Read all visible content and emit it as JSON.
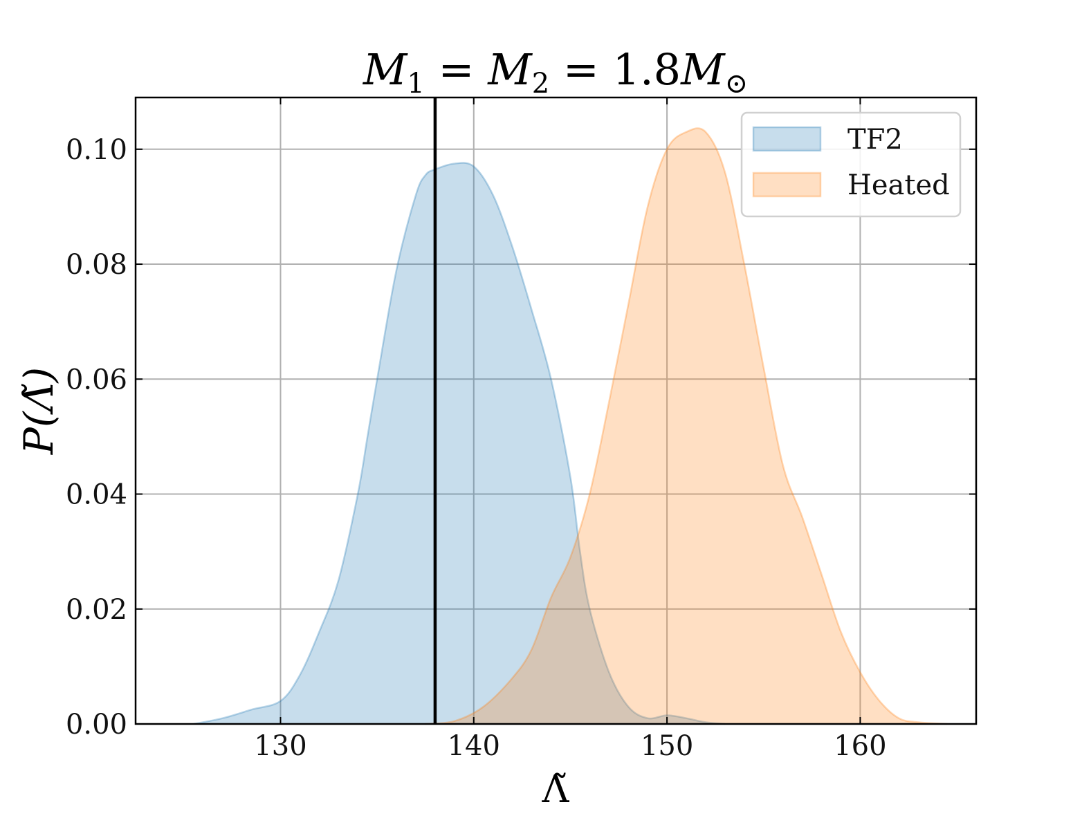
{
  "chart_data": {
    "type": "area",
    "title": {
      "parts": [
        {
          "text": "M",
          "italic": true
        },
        {
          "text": "1",
          "sub": true
        },
        {
          "text": " = ",
          "italic": false
        },
        {
          "text": "M",
          "italic": true
        },
        {
          "text": "2",
          "sub": true
        },
        {
          "text": " = 1.8",
          "italic": false
        },
        {
          "text": "M",
          "italic": true
        },
        {
          "text": "⊙",
          "sub": true
        }
      ]
    },
    "xlabel": "Λ̃",
    "ylabel": "P(Λ̃)",
    "xlim": [
      122.5,
      166
    ],
    "ylim": [
      0,
      0.109
    ],
    "xticks": [
      130,
      140,
      150,
      160
    ],
    "xtick_labels": [
      "130",
      "140",
      "150",
      "160"
    ],
    "yticks": [
      0.0,
      0.02,
      0.04,
      0.06,
      0.08,
      0.1
    ],
    "ytick_labels": [
      "0.00",
      "0.02",
      "0.04",
      "0.06",
      "0.08",
      "0.10"
    ],
    "grid": true,
    "legend_position": "top-right",
    "vline": {
      "x": 138,
      "color": "#000000"
    },
    "series": [
      {
        "name": "TF2",
        "color": "#1f77b4",
        "fill_color": "#c6dbea",
        "x": [
          125.5,
          127.0,
          128.5,
          130.0,
          131.0,
          132.0,
          133.0,
          134.0,
          134.5,
          135.0,
          136.0,
          137.0,
          137.5,
          138.0,
          139.0,
          140.0,
          141.0,
          142.0,
          143.0,
          144.0,
          145.0,
          145.5,
          146.0,
          147.0,
          148.0,
          149.0,
          150.0,
          151.0,
          152.0,
          153.0
        ],
        "values": [
          0.0,
          0.001,
          0.0025,
          0.004,
          0.0085,
          0.016,
          0.025,
          0.04,
          0.05,
          0.06,
          0.079,
          0.092,
          0.0955,
          0.0965,
          0.0975,
          0.097,
          0.092,
          0.083,
          0.072,
          0.06,
          0.043,
          0.03,
          0.02,
          0.009,
          0.003,
          0.001,
          0.0015,
          0.001,
          0.0003,
          0.0
        ]
      },
      {
        "name": "Heated",
        "color": "#ff7f0e",
        "fill_color": "#fdd8b5",
        "x": [
          137.5,
          139.0,
          140.5,
          142.0,
          143.0,
          144.0,
          145.0,
          146.0,
          147.0,
          148.0,
          149.0,
          150.0,
          151.0,
          152.0,
          153.0,
          154.0,
          155.0,
          156.0,
          157.0,
          158.0,
          159.0,
          160.0,
          161.0,
          162.0,
          163.0,
          164.5
        ],
        "values": [
          0.0,
          0.0005,
          0.003,
          0.008,
          0.013,
          0.022,
          0.029,
          0.04,
          0.056,
          0.073,
          0.09,
          0.1,
          0.103,
          0.103,
          0.096,
          0.08,
          0.062,
          0.045,
          0.036,
          0.026,
          0.016,
          0.009,
          0.004,
          0.001,
          0.0003,
          0.0
        ]
      }
    ]
  }
}
